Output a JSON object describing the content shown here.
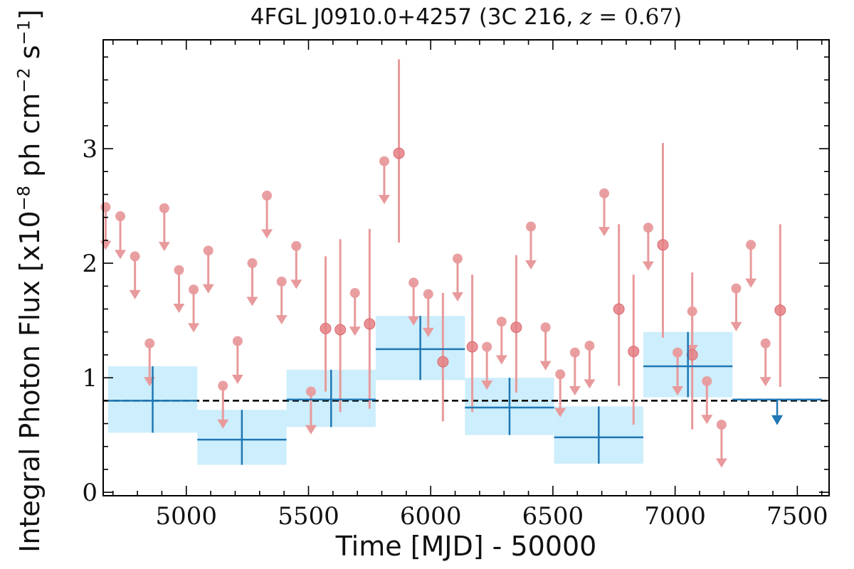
{
  "title": {
    "source": "4FGL J0910.0+4257",
    "object": "3C 216",
    "redshift_symbol": "z",
    "redshift_value": "= 0.67"
  },
  "xlabel": "Time [MJD] - 50000",
  "ylabel": {
    "prefix": "Integral Photon Flux [x10",
    "exp1": "−8",
    "mid": " ph cm",
    "exp2": "−2",
    "mid2": " s",
    "exp3": "−1",
    "suffix": "]"
  },
  "colors": {
    "detail": "#e89a9c",
    "binned": "#1f77b4",
    "binned_fill": "#cdeefc",
    "mean_line": "#000000"
  },
  "chart_data": {
    "type": "scatter",
    "xlim": [
      4660,
      7630
    ],
    "ylim": [
      -0.03,
      3.95
    ],
    "xticks": [
      5000,
      5500,
      6000,
      6500,
      7000,
      7500
    ],
    "yticks": [
      0,
      1,
      2,
      3
    ],
    "mean_flux": 0.8,
    "short_bins_upper_limits": [
      {
        "x": 4670,
        "y": 2.49
      },
      {
        "x": 4730,
        "y": 2.41
      },
      {
        "x": 4790,
        "y": 2.06
      },
      {
        "x": 4850,
        "y": 1.3
      },
      {
        "x": 4910,
        "y": 2.48
      },
      {
        "x": 4970,
        "y": 1.94
      },
      {
        "x": 5030,
        "y": 1.77
      },
      {
        "x": 5090,
        "y": 2.11
      },
      {
        "x": 5150,
        "y": 0.93
      },
      {
        "x": 5210,
        "y": 1.32
      },
      {
        "x": 5270,
        "y": 2.0
      },
      {
        "x": 5330,
        "y": 2.59
      },
      {
        "x": 5390,
        "y": 1.84
      },
      {
        "x": 5450,
        "y": 2.15
      },
      {
        "x": 5510,
        "y": 0.88
      },
      {
        "x": 5810,
        "y": 2.89
      },
      {
        "x": 5930,
        "y": 1.83
      },
      {
        "x": 5990,
        "y": 1.73
      },
      {
        "x": 6110,
        "y": 2.04
      },
      {
        "x": 6230,
        "y": 1.27
      },
      {
        "x": 6290,
        "y": 1.49
      },
      {
        "x": 6410,
        "y": 2.32
      },
      {
        "x": 6470,
        "y": 1.44
      },
      {
        "x": 6530,
        "y": 1.03
      },
      {
        "x": 6590,
        "y": 1.22
      },
      {
        "x": 6650,
        "y": 1.28
      },
      {
        "x": 6710,
        "y": 2.61
      },
      {
        "x": 6890,
        "y": 2.31
      },
      {
        "x": 7010,
        "y": 1.22
      },
      {
        "x": 7070,
        "y": 1.58
      },
      {
        "x": 7130,
        "y": 0.97
      },
      {
        "x": 7190,
        "y": 0.59
      },
      {
        "x": 7250,
        "y": 1.78
      },
      {
        "x": 7310,
        "y": 2.16
      },
      {
        "x": 7370,
        "y": 1.3
      }
    ],
    "short_bins_detections": [
      {
        "x": 5570,
        "y": 1.43,
        "ylow": 0.88,
        "yhigh": 2.06
      },
      {
        "x": 5630,
        "y": 1.42,
        "ylow": 0.7,
        "yhigh": 2.21
      },
      {
        "x": 5690,
        "y": 1.74,
        "ylow": null,
        "yhigh": null,
        "ul": true
      },
      {
        "x": 5750,
        "y": 1.47,
        "ylow": 0.73,
        "yhigh": 2.3
      },
      {
        "x": 5870,
        "y": 2.96,
        "ylow": 2.18,
        "yhigh": 3.78
      },
      {
        "x": 6050,
        "y": 1.14,
        "ylow": 0.62,
        "yhigh": 1.74
      },
      {
        "x": 6170,
        "y": 1.27,
        "ylow": 0.7,
        "yhigh": 1.9
      },
      {
        "x": 6350,
        "y": 1.44,
        "ylow": 0.87,
        "yhigh": 2.07
      },
      {
        "x": 6770,
        "y": 1.6,
        "ylow": 0.93,
        "yhigh": 2.34
      },
      {
        "x": 6830,
        "y": 1.23,
        "ylow": 0.59,
        "yhigh": 1.9
      },
      {
        "x": 6950,
        "y": 2.16,
        "ylow": 1.35,
        "yhigh": 3.05
      },
      {
        "x": 7070,
        "y": 1.2,
        "ylow": 0.55,
        "yhigh": 1.92
      },
      {
        "x": 7430,
        "y": 1.59,
        "ylow": 0.92,
        "yhigh": 2.34
      }
    ],
    "long_bins": [
      {
        "xmin": 4680,
        "xmax": 5045,
        "y": 0.8,
        "ylow": 0.52,
        "yhigh": 1.1
      },
      {
        "xmin": 5045,
        "xmax": 5410,
        "y": 0.46,
        "ylow": 0.24,
        "yhigh": 0.72
      },
      {
        "xmin": 5410,
        "xmax": 5775,
        "y": 0.81,
        "ylow": 0.57,
        "yhigh": 1.07
      },
      {
        "xmin": 5775,
        "xmax": 6140,
        "y": 1.25,
        "ylow": 0.98,
        "yhigh": 1.54
      },
      {
        "xmin": 6140,
        "xmax": 6505,
        "y": 0.74,
        "ylow": 0.5,
        "yhigh": 1.0
      },
      {
        "xmin": 6505,
        "xmax": 6870,
        "y": 0.48,
        "ylow": 0.25,
        "yhigh": 0.75
      },
      {
        "xmin": 6870,
        "xmax": 7235,
        "y": 1.1,
        "ylow": 0.83,
        "yhigh": 1.4
      },
      {
        "xmin": 7235,
        "xmax": 7600,
        "y": 0.81,
        "ul": true
      }
    ]
  }
}
